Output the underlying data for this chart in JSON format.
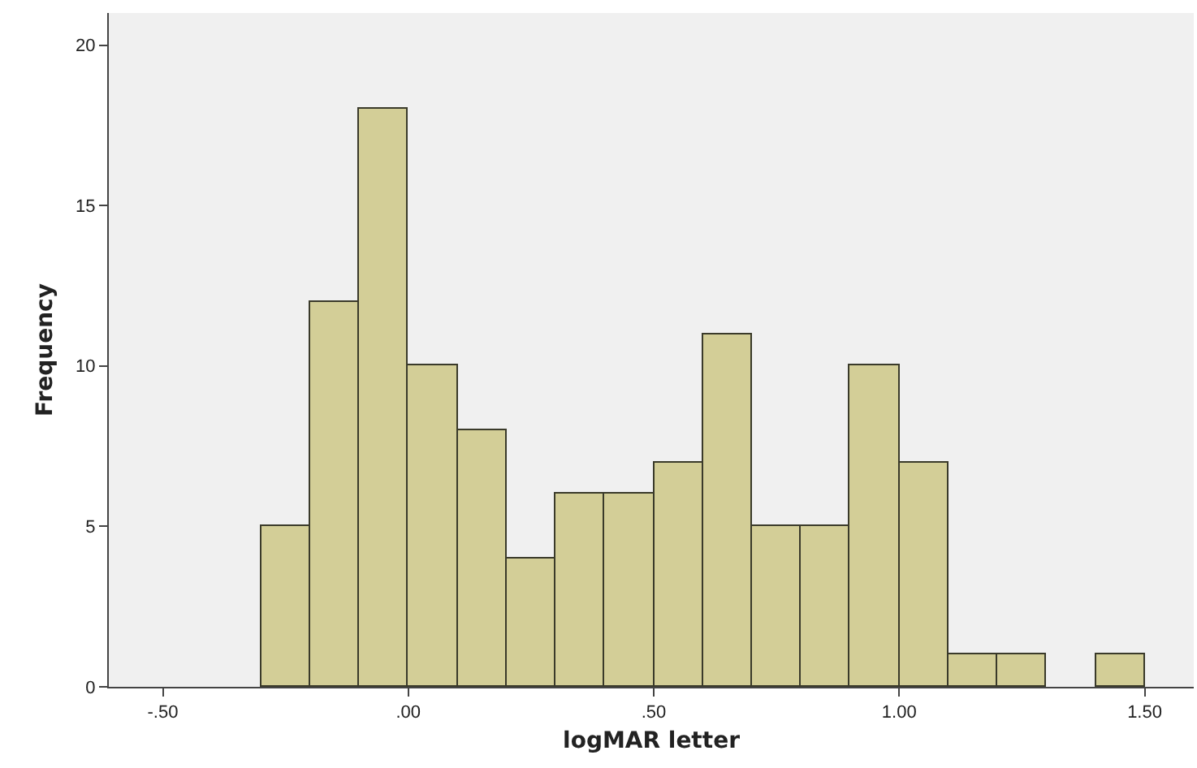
{
  "chart_data": {
    "type": "histogram",
    "xlabel": "logMAR letter",
    "ylabel": "Frequency",
    "bins": [
      -0.3,
      -0.2,
      -0.1,
      0,
      0.1,
      0.2,
      0.3,
      0.4,
      0.5,
      0.6,
      0.7,
      0.8,
      0.9,
      1.0,
      1.1,
      1.2,
      1.3,
      1.4,
      1.5
    ],
    "values": [
      5,
      12,
      18,
      10,
      8,
      4,
      6,
      6,
      7,
      11,
      5,
      5,
      10,
      7,
      1,
      1,
      0,
      1
    ],
    "color": "#d3ce97",
    "xlim": [
      -0.61,
      1.6
    ],
    "xticks": [
      {
        "value": -0.5,
        "label": "-.50"
      },
      {
        "value": 0,
        "label": ".00"
      },
      {
        "value": 0.5,
        "label": ".50"
      },
      {
        "value": 1,
        "label": "1.00"
      },
      {
        "value": 1.5,
        "label": "1.50"
      }
    ],
    "ylim": [
      0,
      21
    ],
    "yticks": [
      0,
      5,
      10,
      15,
      20
    ],
    "grid": false
  }
}
